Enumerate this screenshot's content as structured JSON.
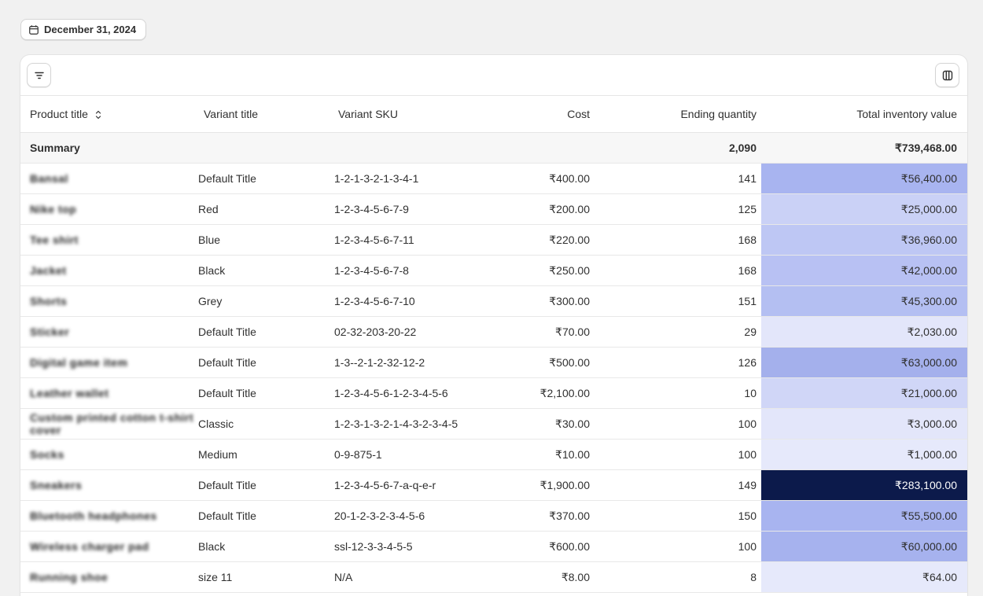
{
  "date_label": "December 31, 2024",
  "columns": {
    "product_title": "Product title",
    "variant_title": "Variant title",
    "variant_sku": "Variant SKU",
    "cost": "Cost",
    "ending_quantity": "Ending quantity",
    "total_inventory_value": "Total inventory value"
  },
  "summary": {
    "label": "Summary",
    "ending_quantity": "2,090",
    "total_inventory_value": "₹739,468.00"
  },
  "rows": [
    {
      "product": "Bansal",
      "variant": "Default Title",
      "sku": "1-2-1-3-2-1-3-4-1",
      "cost": "₹400.00",
      "qty": "141",
      "value": "₹56,400.00",
      "shade": 0.2
    },
    {
      "product": "Nike top",
      "variant": "Red",
      "sku": "1-2-3-4-5-6-7-9",
      "cost": "₹200.00",
      "qty": "125",
      "value": "₹25,000.00",
      "shade": 0.09
    },
    {
      "product": "Tee shirt",
      "variant": "Blue",
      "sku": "1-2-3-4-5-6-7-11",
      "cost": "₹220.00",
      "qty": "168",
      "value": "₹36,960.00",
      "shade": 0.13
    },
    {
      "product": "Jacket",
      "variant": "Black",
      "sku": "1-2-3-4-5-6-7-8",
      "cost": "₹250.00",
      "qty": "168",
      "value": "₹42,000.00",
      "shade": 0.15
    },
    {
      "product": "Shorts",
      "variant": "Grey",
      "sku": "1-2-3-4-5-6-7-10",
      "cost": "₹300.00",
      "qty": "151",
      "value": "₹45,300.00",
      "shade": 0.16
    },
    {
      "product": "Sticker",
      "variant": "Default Title",
      "sku": "02-32-203-20-22",
      "cost": "₹70.00",
      "qty": "29",
      "value": "₹2,030.00",
      "shade": 0.01
    },
    {
      "product": "Digital game item",
      "variant": "Default Title",
      "sku": "1-3--2-1-2-32-12-2",
      "cost": "₹500.00",
      "qty": "126",
      "value": "₹63,000.00",
      "shade": 0.22
    },
    {
      "product": "Leather wallet",
      "variant": "Default Title",
      "sku": "1-2-3-4-5-6-1-2-3-4-5-6",
      "cost": "₹2,100.00",
      "qty": "10",
      "value": "₹21,000.00",
      "shade": 0.07
    },
    {
      "product": "Custom printed cotton t-shirt cover",
      "variant": "Classic",
      "sku": "1-2-3-1-3-2-1-4-3-2-3-4-5",
      "cost": "₹30.00",
      "qty": "100",
      "value": "₹3,000.00",
      "shade": 0.01
    },
    {
      "product": "Socks",
      "variant": "Medium",
      "sku": "0-9-875-1",
      "cost": "₹10.00",
      "qty": "100",
      "value": "₹1,000.00",
      "shade": 0.0
    },
    {
      "product": "Sneakers",
      "variant": "Default Title",
      "sku": "1-2-3-4-5-6-7-a-q-e-r",
      "cost": "₹1,900.00",
      "qty": "149",
      "value": "₹283,100.00",
      "shade": 1.0
    },
    {
      "product": "Bluetooth headphones",
      "variant": "Default Title",
      "sku": "20-1-2-3-2-3-4-5-6",
      "cost": "₹370.00",
      "qty": "150",
      "value": "₹55,500.00",
      "shade": 0.2
    },
    {
      "product": "Wireless charger pad",
      "variant": "Black",
      "sku": "ssl-12-3-3-4-5-5",
      "cost": "₹600.00",
      "qty": "100",
      "value": "₹60,000.00",
      "shade": 0.21
    },
    {
      "product": "Running shoe",
      "variant": "size 11",
      "sku": "N/A",
      "cost": "₹8.00",
      "qty": "8",
      "value": "₹64.00",
      "shade": 0.0
    }
  ],
  "colors": {
    "heat_low": "#e6e9fb",
    "heat_mid": "#a8b4f0",
    "heat_high": "#0c1a4b"
  }
}
